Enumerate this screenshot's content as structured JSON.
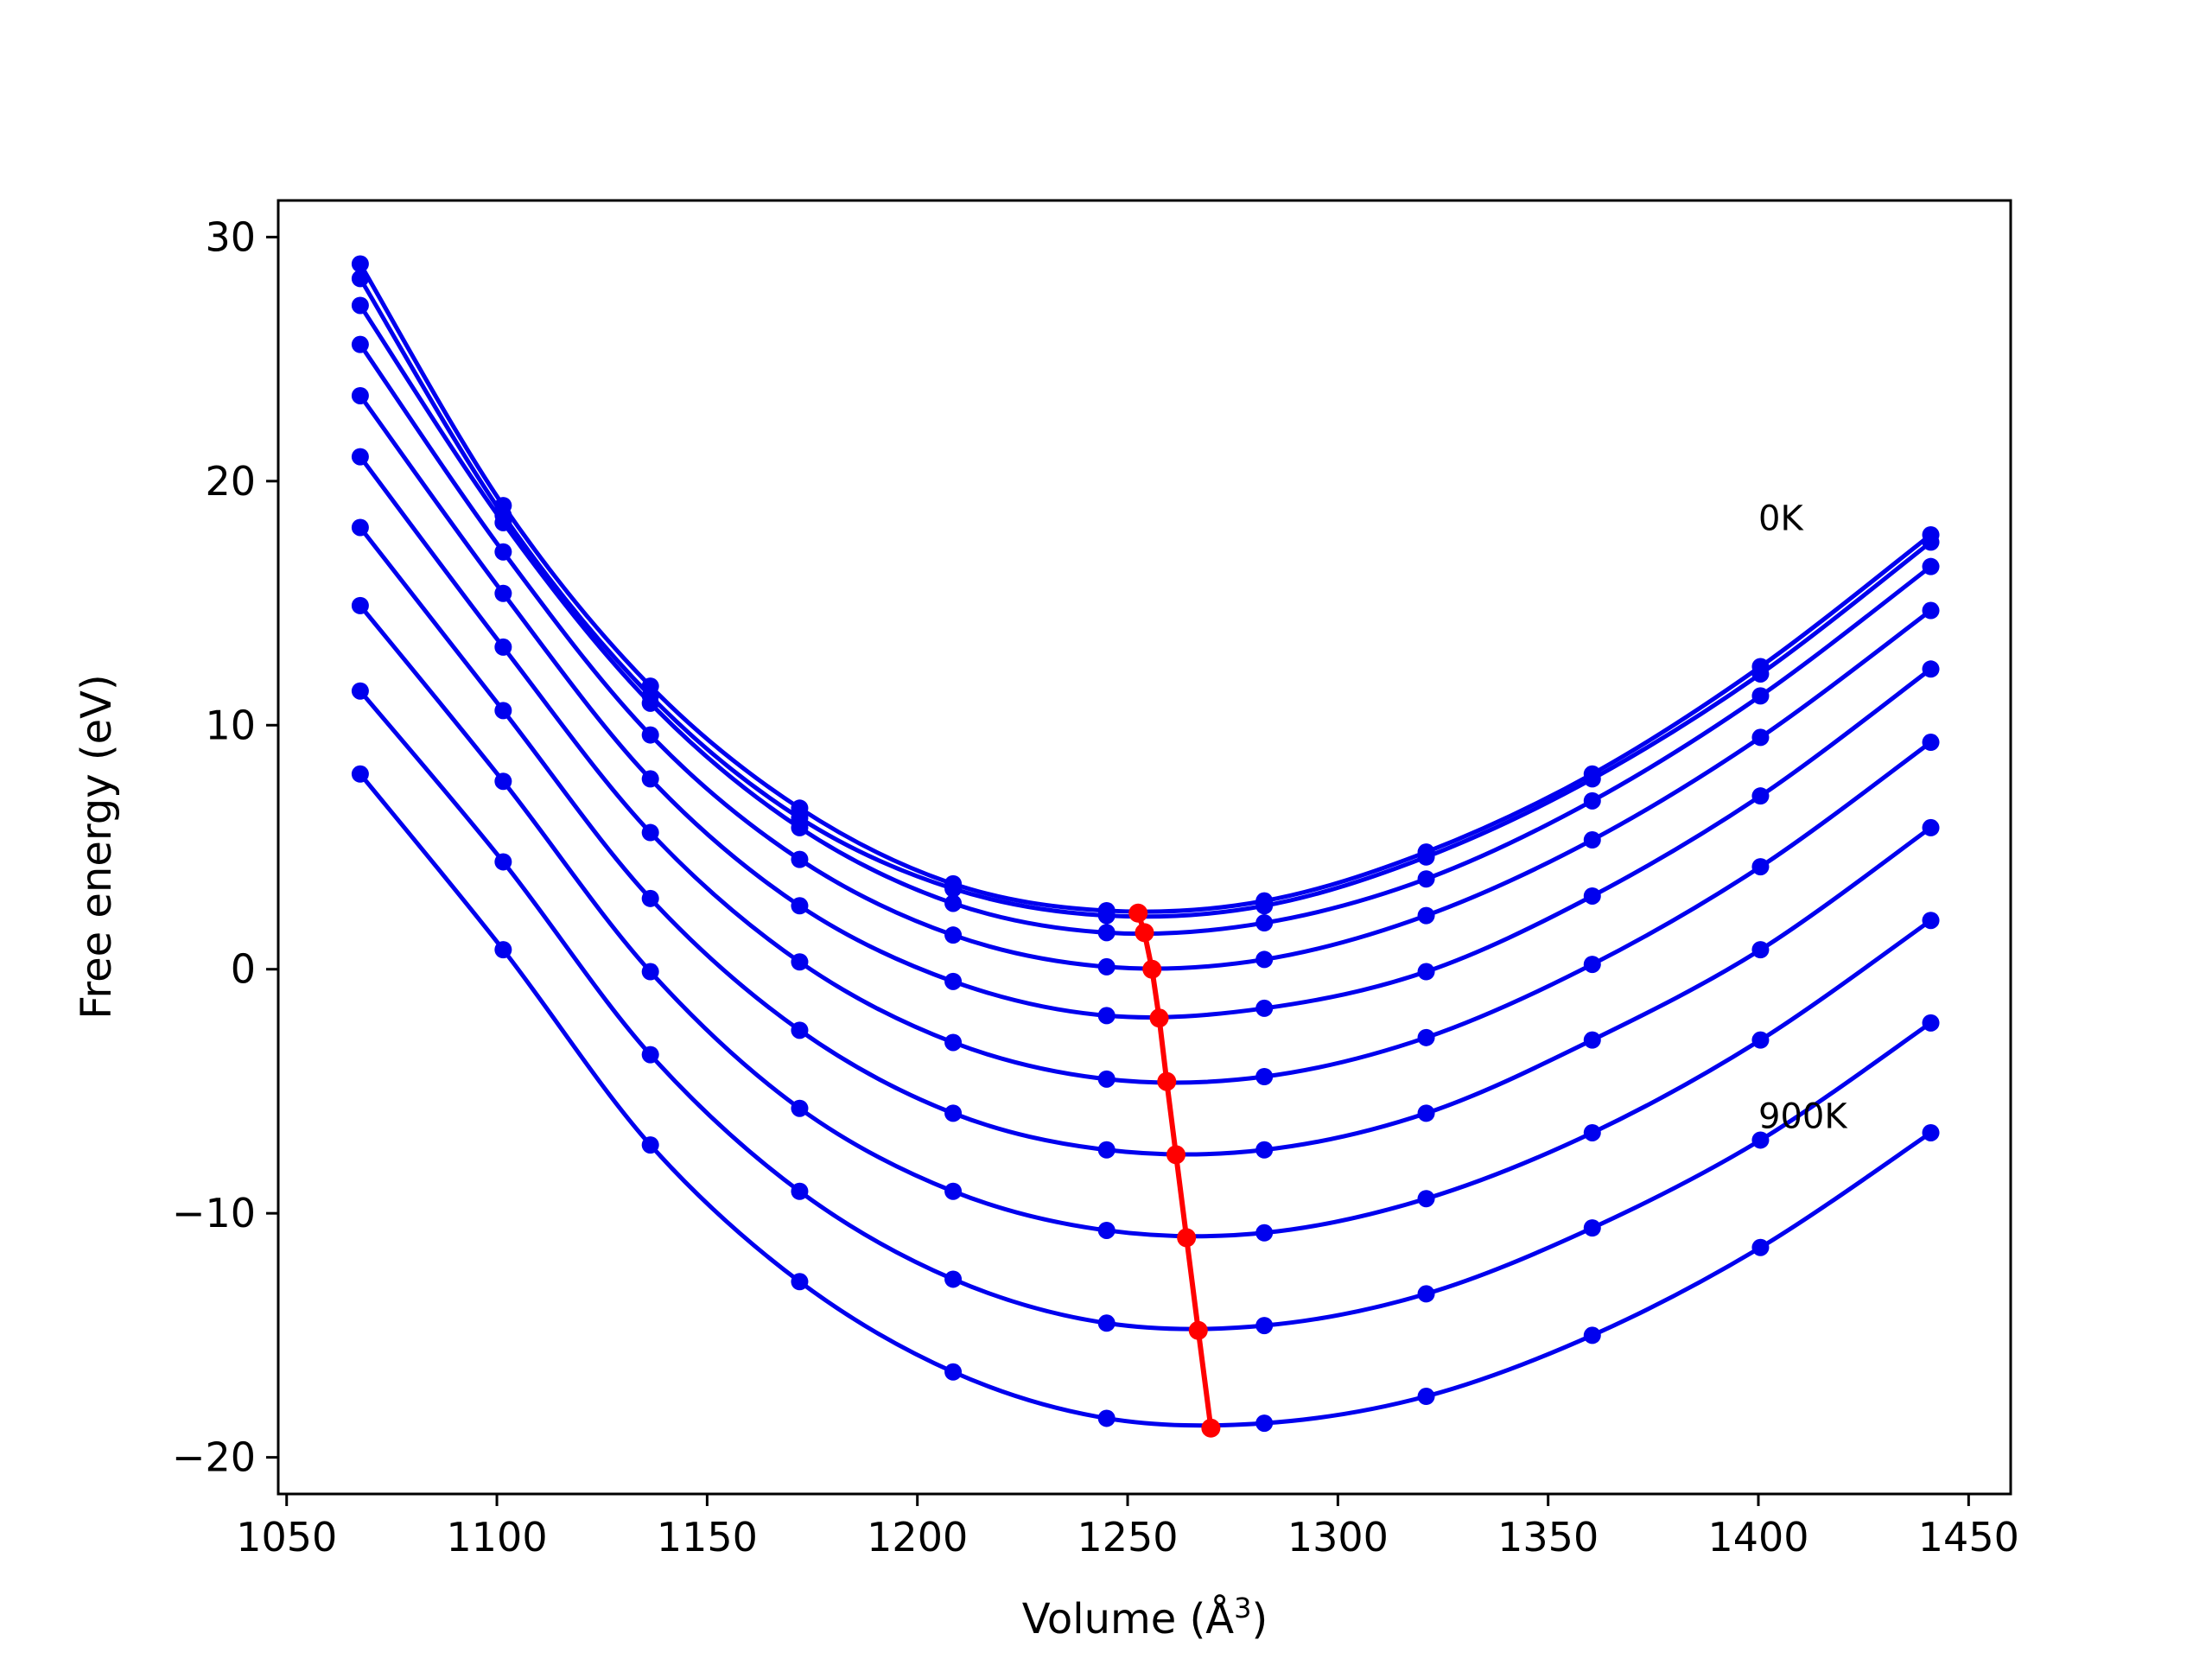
{
  "chart_data": {
    "type": "line",
    "xlabel": "Volume (Å",
    "xlabel_sup": "3",
    "xlabel_end": ")",
    "ylabel": "Free energy (eV)",
    "xlim": [
      1048,
      1460
    ],
    "ylim": [
      -21.5,
      31.5
    ],
    "xticks": [
      1050,
      1100,
      1150,
      1200,
      1250,
      1300,
      1350,
      1400,
      1450
    ],
    "yticks": [
      -20,
      -10,
      0,
      10,
      20,
      30
    ],
    "x_tick_labels": [
      "1050",
      "1100",
      "1150",
      "1200",
      "1250",
      "1300",
      "1350",
      "1400",
      "1450"
    ],
    "y_tick_labels": [
      "−20",
      "−10",
      "0",
      "10",
      "20",
      "30"
    ],
    "grid": false,
    "x_volumes": [
      1067.5,
      1101.5,
      1136.5,
      1172.0,
      1208.5,
      1245.0,
      1282.5,
      1321.0,
      1360.5,
      1400.5,
      1441.0
    ],
    "series": [
      {
        "values": [
          28.9,
          19.0,
          11.6,
          6.6,
          3.5,
          2.4,
          2.8,
          4.8,
          8.0,
          12.4,
          17.8
        ]
      },
      {
        "values": [
          28.3,
          18.6,
          11.2,
          6.2,
          3.3,
          2.2,
          2.6,
          4.6,
          7.8,
          12.1,
          17.5
        ]
      },
      {
        "values": [
          27.2,
          18.3,
          10.9,
          5.8,
          2.7,
          1.5,
          1.9,
          3.7,
          6.9,
          11.2,
          16.5
        ]
      },
      {
        "values": [
          25.6,
          17.1,
          9.6,
          4.5,
          1.4,
          0.1,
          0.4,
          2.2,
          5.3,
          9.5,
          14.7
        ]
      },
      {
        "values": [
          23.5,
          15.4,
          7.8,
          2.6,
          -0.5,
          -1.9,
          -1.6,
          -0.1,
          3.0,
          7.1,
          12.3
        ]
      },
      {
        "values": [
          21.0,
          13.2,
          5.6,
          0.3,
          -3.0,
          -4.5,
          -4.4,
          -2.8,
          0.2,
          4.2,
          9.3
        ]
      },
      {
        "values": [
          18.1,
          10.6,
          2.9,
          -2.5,
          -5.9,
          -7.4,
          -7.4,
          -5.9,
          -2.9,
          0.8,
          5.8
        ]
      },
      {
        "values": [
          14.9,
          7.7,
          -0.1,
          -5.7,
          -9.1,
          -10.7,
          -10.8,
          -9.4,
          -6.7,
          -2.9,
          2.0
        ]
      },
      {
        "values": [
          11.4,
          4.4,
          -3.5,
          -9.1,
          -12.7,
          -14.5,
          -14.6,
          -13.3,
          -10.6,
          -7.0,
          -2.2
        ]
      },
      {
        "values": [
          8.0,
          0.8,
          -7.2,
          -12.8,
          -16.5,
          -18.4,
          -18.6,
          -17.5,
          -15.0,
          -11.4,
          -6.7
        ]
      }
    ],
    "minima_series": {
      "x": [
        1252.5,
        1254.0,
        1255.8,
        1257.5,
        1259.3,
        1261.5,
        1264.0,
        1266.8,
        1269.8
      ],
      "y": [
        2.3,
        1.5,
        0.0,
        -2.0,
        -4.6,
        -7.6,
        -11.0,
        -14.8,
        -18.8
      ]
    },
    "annotations": [
      {
        "text": "0K",
        "x": 1400,
        "y": 18.0
      },
      {
        "text": "900K",
        "x": 1400,
        "y": -6.5
      }
    ],
    "colors": {
      "curves": "#0000ee",
      "minima": "#ff0000",
      "axes": "#000000"
    }
  }
}
